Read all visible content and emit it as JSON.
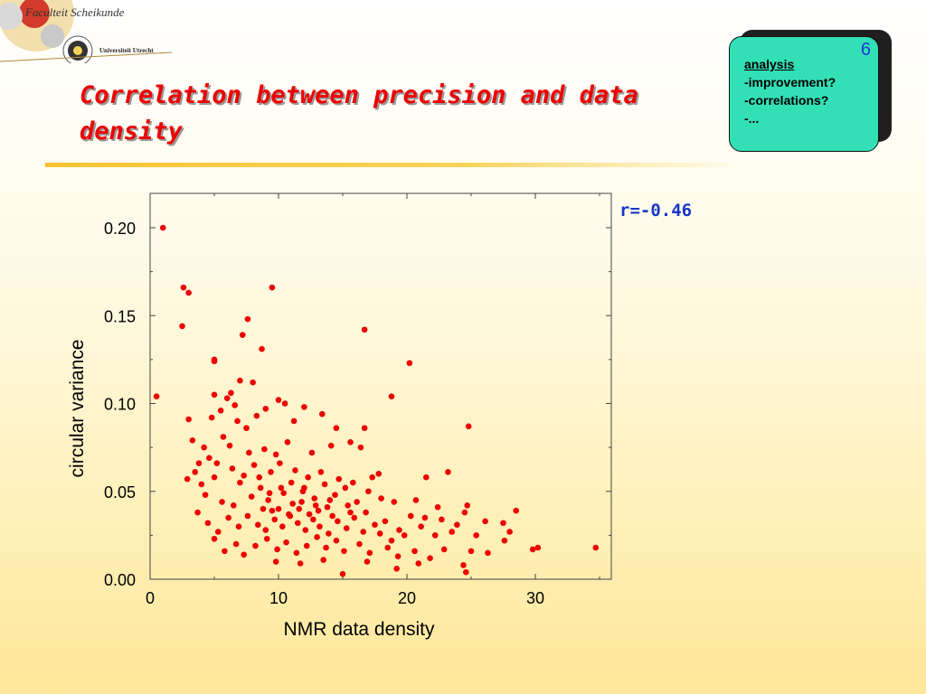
{
  "header": {
    "faculty_logo_text": "Faculteit Scheikunde",
    "university_logo_text": "Universiteit Utrecht",
    "title": "Correlation between precision and data density"
  },
  "nav_box": {
    "number": "6",
    "heading": "analysis",
    "items": [
      "-improvement?",
      "-correlations?",
      "-..."
    ]
  },
  "annotation": "r=-0.46",
  "colors": {
    "title": "#ee0000",
    "points": "#ee0000",
    "annotation": "#1736c8",
    "nav_box": "#33e0b6"
  },
  "chart_data": {
    "type": "scatter",
    "xlabel": "NMR data density",
    "ylabel": "circular variance",
    "xlim": [
      0,
      36
    ],
    "ylim": [
      0,
      0.22
    ],
    "x_ticks": [
      "0",
      "10",
      "20",
      "30"
    ],
    "y_ticks": [
      "0.00",
      "0.05",
      "0.10",
      "0.15",
      "0.20"
    ],
    "grid": false,
    "points": [
      [
        1.0,
        0.2
      ],
      [
        2.6,
        0.166
      ],
      [
        3.0,
        0.163
      ],
      [
        9.5,
        0.166
      ],
      [
        7.6,
        0.148
      ],
      [
        2.5,
        0.144
      ],
      [
        7.2,
        0.139
      ],
      [
        8.7,
        0.131
      ],
      [
        16.7,
        0.142
      ],
      [
        5.0,
        0.125
      ],
      [
        5.0,
        0.124
      ],
      [
        20.2,
        0.123
      ],
      [
        0.5,
        0.104
      ],
      [
        5.0,
        0.105
      ],
      [
        18.8,
        0.104
      ],
      [
        10.0,
        0.102
      ],
      [
        6.0,
        0.103
      ],
      [
        6.3,
        0.106
      ],
      [
        7.0,
        0.113
      ],
      [
        8.0,
        0.112
      ],
      [
        3.0,
        0.091
      ],
      [
        24.8,
        0.087
      ],
      [
        16.7,
        0.086
      ],
      [
        12.0,
        0.098
      ],
      [
        10.5,
        0.1
      ],
      [
        9.0,
        0.097
      ],
      [
        8.3,
        0.093
      ],
      [
        6.8,
        0.09
      ],
      [
        7.5,
        0.086
      ],
      [
        11.2,
        0.09
      ],
      [
        13.4,
        0.094
      ],
      [
        14.5,
        0.086
      ],
      [
        15.6,
        0.078
      ],
      [
        3.3,
        0.079
      ],
      [
        4.2,
        0.075
      ],
      [
        5.7,
        0.081
      ],
      [
        6.2,
        0.076
      ],
      [
        4.6,
        0.069
      ],
      [
        5.2,
        0.066
      ],
      [
        7.7,
        0.072
      ],
      [
        8.9,
        0.074
      ],
      [
        9.8,
        0.071
      ],
      [
        10.7,
        0.078
      ],
      [
        12.6,
        0.072
      ],
      [
        14.1,
        0.076
      ],
      [
        16.4,
        0.075
      ],
      [
        3.5,
        0.061
      ],
      [
        4.0,
        0.054
      ],
      [
        5.0,
        0.058
      ],
      [
        6.4,
        0.063
      ],
      [
        7.3,
        0.059
      ],
      [
        8.1,
        0.065
      ],
      [
        9.4,
        0.061
      ],
      [
        10.1,
        0.066
      ],
      [
        11.3,
        0.062
      ],
      [
        12.3,
        0.058
      ],
      [
        13.3,
        0.061
      ],
      [
        14.7,
        0.057
      ],
      [
        15.8,
        0.055
      ],
      [
        17.3,
        0.058
      ],
      [
        17.8,
        0.06
      ],
      [
        21.5,
        0.058
      ],
      [
        23.2,
        0.061
      ],
      [
        24.7,
        0.042
      ],
      [
        3.7,
        0.038
      ],
      [
        4.3,
        0.048
      ],
      [
        5.6,
        0.044
      ],
      [
        6.5,
        0.042
      ],
      [
        7.9,
        0.047
      ],
      [
        8.6,
        0.052
      ],
      [
        9.2,
        0.045
      ],
      [
        10.4,
        0.049
      ],
      [
        11.1,
        0.043
      ],
      [
        11.9,
        0.05
      ],
      [
        12.8,
        0.046
      ],
      [
        13.8,
        0.041
      ],
      [
        14.4,
        0.048
      ],
      [
        15.2,
        0.052
      ],
      [
        16.1,
        0.044
      ],
      [
        17.0,
        0.05
      ],
      [
        18.0,
        0.046
      ],
      [
        19.0,
        0.044
      ],
      [
        20.7,
        0.045
      ],
      [
        22.4,
        0.041
      ],
      [
        4.5,
        0.032
      ],
      [
        5.3,
        0.027
      ],
      [
        6.1,
        0.035
      ],
      [
        6.9,
        0.03
      ],
      [
        7.6,
        0.036
      ],
      [
        8.4,
        0.031
      ],
      [
        9.0,
        0.028
      ],
      [
        9.7,
        0.034
      ],
      [
        10.3,
        0.03
      ],
      [
        10.9,
        0.036
      ],
      [
        11.5,
        0.032
      ],
      [
        12.1,
        0.028
      ],
      [
        12.7,
        0.034
      ],
      [
        13.2,
        0.03
      ],
      [
        13.9,
        0.026
      ],
      [
        14.6,
        0.033
      ],
      [
        15.3,
        0.029
      ],
      [
        15.9,
        0.035
      ],
      [
        16.6,
        0.027
      ],
      [
        17.5,
        0.031
      ],
      [
        18.3,
        0.033
      ],
      [
        19.4,
        0.028
      ],
      [
        20.3,
        0.036
      ],
      [
        21.1,
        0.03
      ],
      [
        23.5,
        0.027
      ],
      [
        24.5,
        0.038
      ],
      [
        26.1,
        0.033
      ],
      [
        28.5,
        0.039
      ],
      [
        27.5,
        0.032
      ],
      [
        29.8,
        0.017
      ],
      [
        30.2,
        0.018
      ],
      [
        34.7,
        0.018
      ],
      [
        26.3,
        0.015
      ],
      [
        25.0,
        0.016
      ],
      [
        5.0,
        0.023
      ],
      [
        5.8,
        0.016
      ],
      [
        6.7,
        0.02
      ],
      [
        7.3,
        0.014
      ],
      [
        8.2,
        0.019
      ],
      [
        9.1,
        0.023
      ],
      [
        9.9,
        0.017
      ],
      [
        10.6,
        0.021
      ],
      [
        11.4,
        0.015
      ],
      [
        12.2,
        0.019
      ],
      [
        13.0,
        0.024
      ],
      [
        13.7,
        0.018
      ],
      [
        14.5,
        0.022
      ],
      [
        15.1,
        0.016
      ],
      [
        16.3,
        0.02
      ],
      [
        17.1,
        0.015
      ],
      [
        18.5,
        0.018
      ],
      [
        19.3,
        0.013
      ],
      [
        20.6,
        0.016
      ],
      [
        21.8,
        0.012
      ],
      [
        22.9,
        0.017
      ],
      [
        24.4,
        0.008
      ],
      [
        24.6,
        0.004
      ],
      [
        19.2,
        0.006
      ],
      [
        15.0,
        0.003
      ],
      [
        9.8,
        0.01
      ],
      [
        11.7,
        0.009
      ],
      [
        13.5,
        0.011
      ],
      [
        16.9,
        0.01
      ],
      [
        20.9,
        0.009
      ],
      [
        21.4,
        0.035
      ],
      [
        22.7,
        0.034
      ],
      [
        23.9,
        0.031
      ],
      [
        25.4,
        0.025
      ],
      [
        28.0,
        0.027
      ],
      [
        27.6,
        0.022
      ],
      [
        22.2,
        0.025
      ],
      [
        10.0,
        0.04
      ],
      [
        10.8,
        0.037
      ],
      [
        11.6,
        0.04
      ],
      [
        12.4,
        0.037
      ],
      [
        13.1,
        0.039
      ],
      [
        14.2,
        0.036
      ],
      [
        15.6,
        0.038
      ],
      [
        9.5,
        0.039
      ],
      [
        8.8,
        0.04
      ],
      [
        11.0,
        0.055
      ],
      [
        12.0,
        0.052
      ],
      [
        13.6,
        0.054
      ],
      [
        8.5,
        0.058
      ],
      [
        7.0,
        0.055
      ],
      [
        9.3,
        0.049
      ],
      [
        10.2,
        0.052
      ],
      [
        11.8,
        0.044
      ],
      [
        12.9,
        0.042
      ],
      [
        14.0,
        0.045
      ],
      [
        15.4,
        0.042
      ],
      [
        16.8,
        0.038
      ],
      [
        19.8,
        0.025
      ],
      [
        18.8,
        0.022
      ],
      [
        17.9,
        0.026
      ],
      [
        2.9,
        0.057
      ],
      [
        3.8,
        0.066
      ],
      [
        4.8,
        0.092
      ],
      [
        5.5,
        0.096
      ],
      [
        6.6,
        0.099
      ]
    ]
  }
}
